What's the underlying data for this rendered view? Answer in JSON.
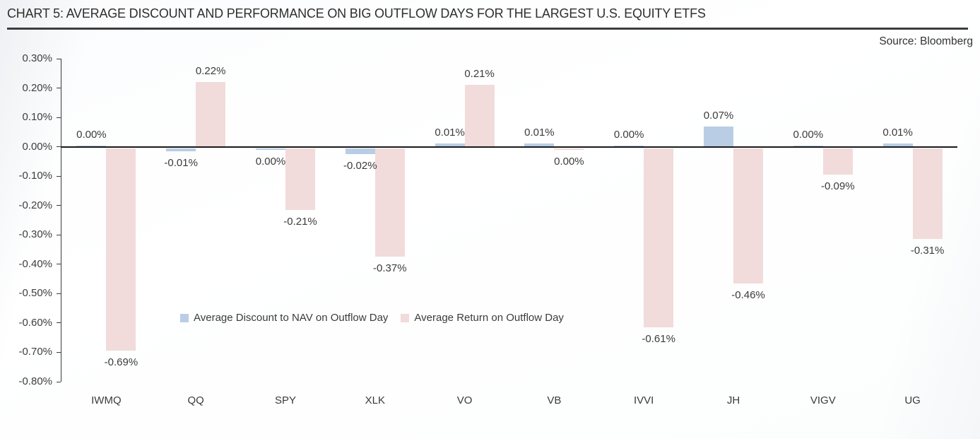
{
  "header": {
    "title": "CHART 5: AVERAGE DISCOUNT AND PERFORMANCE ON BIG OUTFLOW DAYS FOR THE LARGEST U.S. EQUITY ETFS",
    "source": "Source: Bloomberg"
  },
  "chart_data": {
    "type": "bar",
    "title": "CHART 5: AVERAGE DISCOUNT AND PERFORMANCE ON BIG OUTFLOW DAYS FOR THE LARGEST U.S. EQUITY ETFS",
    "categories": [
      "IWMQ",
      "QQ",
      "SPY",
      "XLK",
      "VO",
      "VB",
      "IVVI",
      "JH",
      "VIGV",
      "UG"
    ],
    "series": [
      {
        "name": "Average Discount to NAV on Outflow Day",
        "color": "#b9cde5",
        "points": [
          {
            "value": 0.0,
            "label": "0.00%",
            "label_side": "above"
          },
          {
            "value": -0.01,
            "label": "-0.01%",
            "label_side": "below"
          },
          {
            "value": 0.0,
            "label": "0.00%",
            "label_side": "below"
          },
          {
            "value": -0.02,
            "label": "-0.02%",
            "label_side": "below"
          },
          {
            "value": 0.01,
            "label": "0.01%",
            "label_side": "above"
          },
          {
            "value": 0.01,
            "label": "0.01%",
            "label_side": "above"
          },
          {
            "value": 0.0,
            "label": "0.00%",
            "label_side": "above"
          },
          {
            "value": 0.07,
            "label": "0.07%",
            "label_side": "above"
          },
          {
            "value": 0.0,
            "label": "0.00%",
            "label_side": "above"
          },
          {
            "value": 0.01,
            "label": "0.01%",
            "label_side": "above"
          }
        ]
      },
      {
        "name": "Average Return on Outflow Day",
        "color": "#f2dbdb",
        "points": [
          {
            "value": -0.69,
            "label": "-0.69%",
            "label_side": "below"
          },
          {
            "value": 0.22,
            "label": "0.22%",
            "label_side": "above"
          },
          {
            "value": -0.21,
            "label": "-0.21%",
            "label_side": "below"
          },
          {
            "value": -0.37,
            "label": "-0.37%",
            "label_side": "below"
          },
          {
            "value": 0.21,
            "label": "0.21%",
            "label_side": "above"
          },
          {
            "value": 0.0,
            "label": "0.00%",
            "label_side": "below"
          },
          {
            "value": -0.61,
            "label": "-0.61%",
            "label_side": "below"
          },
          {
            "value": -0.46,
            "label": "-0.46%",
            "label_side": "below"
          },
          {
            "value": -0.09,
            "label": "-0.09%",
            "label_side": "below"
          },
          {
            "value": -0.31,
            "label": "-0.31%",
            "label_side": "below"
          }
        ]
      }
    ],
    "y_axis": {
      "unit": "%",
      "max": 0.3,
      "min": -0.8,
      "step": 0.1,
      "ticks": [
        {
          "value": 0.3,
          "label": "0.30%"
        },
        {
          "value": 0.2,
          "label": "0.20%"
        },
        {
          "value": 0.1,
          "label": "0.10%"
        },
        {
          "value": 0.0,
          "label": "0.00%"
        },
        {
          "value": -0.1,
          "label": "-0.10%"
        },
        {
          "value": -0.2,
          "label": "-0.20%"
        },
        {
          "value": -0.3,
          "label": "-0.30%"
        },
        {
          "value": -0.4,
          "label": "-0.40%"
        },
        {
          "value": -0.5,
          "label": "-0.50%"
        },
        {
          "value": -0.6,
          "label": "-0.60%"
        },
        {
          "value": -0.7,
          "label": "-0.70%"
        },
        {
          "value": -0.8,
          "label": "-0.80%"
        }
      ]
    },
    "legend_position": "inside-bottom-left",
    "grid": false
  },
  "colors": {
    "discount_blue": "#b9cde5",
    "return_pink": "#f2dbdb",
    "axis": "#3c3c3c",
    "zero_line": "#1a1a1a",
    "text": "#3b3b3b",
    "title_rule": "#3d3d3d"
  }
}
